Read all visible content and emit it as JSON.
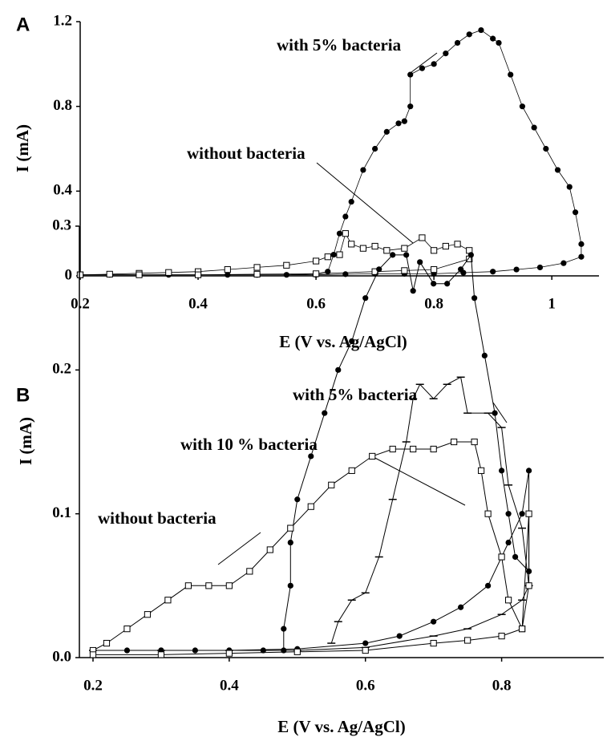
{
  "chart_data": [
    {
      "type": "line",
      "panel_label": "A",
      "xlabel": "E (V vs. Ag/AgCl)",
      "ylabel": "I (mA)",
      "xlim": [
        0.2,
        1.08
      ],
      "ylim": [
        0,
        1.2
      ],
      "xticks": [
        0.2,
        0.4,
        0.6,
        0.8,
        1
      ],
      "yticks": [
        0,
        0.4,
        0.8,
        1.2
      ],
      "annotations": [
        "with 5% bacteria",
        "without bacteria"
      ],
      "series": [
        {
          "name": "with 5% bacteria",
          "color": "#000",
          "marker": "circle",
          "x": [
            0.2,
            0.25,
            0.3,
            0.35,
            0.4,
            0.45,
            0.5,
            0.55,
            0.6,
            0.62,
            0.63,
            0.64,
            0.65,
            0.66,
            0.68,
            0.7,
            0.72,
            0.74,
            0.75,
            0.76,
            0.76,
            0.78,
            0.8,
            0.82,
            0.84,
            0.86,
            0.88,
            0.9,
            0.91,
            0.93,
            0.95,
            0.97,
            0.99,
            1.01,
            1.03,
            1.04,
            1.05,
            1.05,
            1.02,
            0.98,
            0.94,
            0.9,
            0.85,
            0.8,
            0.75,
            0.7,
            0.65,
            0.6,
            0.5,
            0.4,
            0.3,
            0.2
          ],
          "values": [
            0.005,
            0.005,
            0.005,
            0.005,
            0.005,
            0.005,
            0.005,
            0.005,
            0.01,
            0.02,
            0.1,
            0.2,
            0.28,
            0.35,
            0.5,
            0.6,
            0.68,
            0.72,
            0.73,
            0.8,
            0.95,
            0.98,
            1.0,
            1.05,
            1.1,
            1.14,
            1.16,
            1.12,
            1.1,
            0.95,
            0.8,
            0.7,
            0.6,
            0.5,
            0.42,
            0.3,
            0.15,
            0.09,
            0.06,
            0.04,
            0.03,
            0.02,
            0.015,
            0.01,
            0.01,
            0.01,
            0.008,
            0.005,
            0.005,
            0.005,
            0.005,
            0.005
          ]
        },
        {
          "name": "without bacteria",
          "color": "#000",
          "marker": "square",
          "x": [
            0.2,
            0.25,
            0.3,
            0.35,
            0.4,
            0.45,
            0.5,
            0.55,
            0.6,
            0.62,
            0.64,
            0.65,
            0.66,
            0.68,
            0.7,
            0.72,
            0.75,
            0.78,
            0.8,
            0.82,
            0.84,
            0.86,
            0.86,
            0.8,
            0.75,
            0.7,
            0.6,
            0.5,
            0.4,
            0.3,
            0.2
          ],
          "values": [
            0.005,
            0.008,
            0.012,
            0.016,
            0.02,
            0.03,
            0.04,
            0.05,
            0.07,
            0.09,
            0.1,
            0.2,
            0.15,
            0.13,
            0.14,
            0.12,
            0.13,
            0.18,
            0.12,
            0.14,
            0.15,
            0.12,
            0.08,
            0.03,
            0.025,
            0.02,
            0.01,
            0.008,
            0.005,
            0.005,
            0.005
          ]
        }
      ]
    },
    {
      "type": "line",
      "panel_label": "B",
      "xlabel": "E (V vs. Ag/AgCl)",
      "ylabel": "I (mA)",
      "xlim": [
        0.18,
        0.95
      ],
      "ylim": [
        0,
        0.3
      ],
      "xticks": [
        0.2,
        0.4,
        0.6,
        0.8
      ],
      "yticks": [
        {
          "value": 0,
          "label": "0.0"
        },
        0.1,
        0.2,
        0.3
      ],
      "annotations": [
        "with 5% bacteria",
        "with 10 % bacteria",
        "without bacteria"
      ],
      "series": [
        {
          "name": "with 5% bacteria",
          "color": "#000",
          "marker": "circle",
          "x": [
            0.2,
            0.25,
            0.3,
            0.35,
            0.4,
            0.45,
            0.48,
            0.48,
            0.49,
            0.49,
            0.5,
            0.52,
            0.54,
            0.56,
            0.58,
            0.6,
            0.62,
            0.64,
            0.66,
            0.67,
            0.68,
            0.7,
            0.72,
            0.74,
            0.755,
            0.76,
            0.775,
            0.79,
            0.8,
            0.81,
            0.82,
            0.84,
            0.84,
            0.83,
            0.81,
            0.78,
            0.74,
            0.7,
            0.65,
            0.6,
            0.5,
            0.4,
            0.3,
            0.2
          ],
          "values": [
            0.005,
            0.005,
            0.005,
            0.005,
            0.005,
            0.005,
            0.005,
            0.02,
            0.05,
            0.08,
            0.11,
            0.14,
            0.17,
            0.2,
            0.22,
            0.25,
            0.27,
            0.28,
            0.28,
            0.255,
            0.275,
            0.26,
            0.26,
            0.27,
            0.28,
            0.25,
            0.21,
            0.17,
            0.13,
            0.1,
            0.07,
            0.06,
            0.13,
            0.1,
            0.08,
            0.05,
            0.035,
            0.025,
            0.015,
            0.01,
            0.006,
            0.005,
            0.005,
            0.005
          ]
        },
        {
          "name": "with 10 % bacteria",
          "color": "#000",
          "marker": "dash",
          "x": [
            0.55,
            0.56,
            0.58,
            0.6,
            0.62,
            0.64,
            0.66,
            0.67,
            0.68,
            0.7,
            0.72,
            0.74,
            0.75,
            0.78,
            0.8,
            0.81,
            0.83,
            0.84,
            0.83,
            0.8,
            0.75,
            0.7,
            0.6,
            0.5,
            0.4,
            0.3,
            0.2
          ],
          "values": [
            0.01,
            0.025,
            0.04,
            0.045,
            0.07,
            0.11,
            0.15,
            0.18,
            0.19,
            0.18,
            0.19,
            0.195,
            0.17,
            0.17,
            0.16,
            0.12,
            0.09,
            0.05,
            0.04,
            0.03,
            0.02,
            0.015,
            0.007,
            0.005,
            0.005,
            0.005,
            0.005
          ]
        },
        {
          "name": "without bacteria",
          "color": "#000",
          "marker": "square",
          "x": [
            0.2,
            0.22,
            0.25,
            0.28,
            0.31,
            0.34,
            0.37,
            0.4,
            0.43,
            0.46,
            0.49,
            0.52,
            0.55,
            0.58,
            0.61,
            0.64,
            0.67,
            0.7,
            0.73,
            0.76,
            0.77,
            0.78,
            0.8,
            0.81,
            0.83,
            0.84,
            0.84,
            0.83,
            0.8,
            0.75,
            0.7,
            0.6,
            0.5,
            0.4,
            0.3,
            0.2
          ],
          "values": [
            0.005,
            0.01,
            0.02,
            0.03,
            0.04,
            0.05,
            0.05,
            0.05,
            0.06,
            0.075,
            0.09,
            0.105,
            0.12,
            0.13,
            0.14,
            0.145,
            0.145,
            0.145,
            0.15,
            0.15,
            0.13,
            0.1,
            0.07,
            0.04,
            0.02,
            0.05,
            0.1,
            0.02,
            0.015,
            0.012,
            0.01,
            0.005,
            0.004,
            0.003,
            0.002,
            0.002
          ]
        }
      ]
    }
  ]
}
